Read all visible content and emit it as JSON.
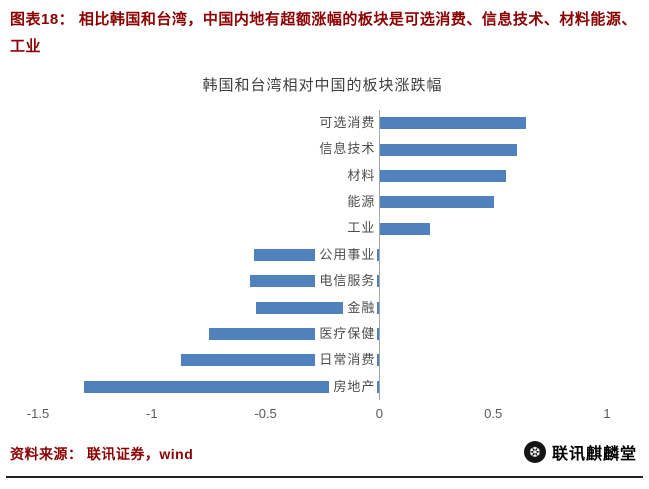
{
  "figure": {
    "label": "图表18：",
    "title": "相比韩国和台湾，中国内地有超额涨幅的板块是可选消费、信息技术、材料能源、工业",
    "accent_color": "#8B0000"
  },
  "chart_data": {
    "type": "bar",
    "orientation": "horizontal",
    "title": "韩国和台湾相对中国的板块涨跌幅",
    "categories": [
      "可选消费",
      "信息技术",
      "材料",
      "能源",
      "工业",
      "公用事业",
      "电信服务",
      "金融",
      "医疗保健",
      "日常消费",
      "房地产"
    ],
    "values": [
      0.64,
      0.6,
      0.55,
      0.5,
      0.22,
      -0.55,
      -0.57,
      -0.54,
      -0.75,
      -0.87,
      -1.3
    ],
    "xlim": [
      -1.5,
      1
    ],
    "x_ticks": [
      -1.5,
      -1,
      -0.5,
      0,
      0.5,
      1
    ],
    "x_tick_labels": [
      "-1.5",
      "-1",
      "-0.5",
      "0",
      "0.5",
      "1"
    ],
    "bar_color": "#4F81BD",
    "grid": false,
    "legend": null
  },
  "footer": {
    "source": "资料来源： 联讯证券，wind",
    "brand": "联讯麒麟堂",
    "logo_icon": "snowflake-icon",
    "logo_glyph": "❆"
  }
}
